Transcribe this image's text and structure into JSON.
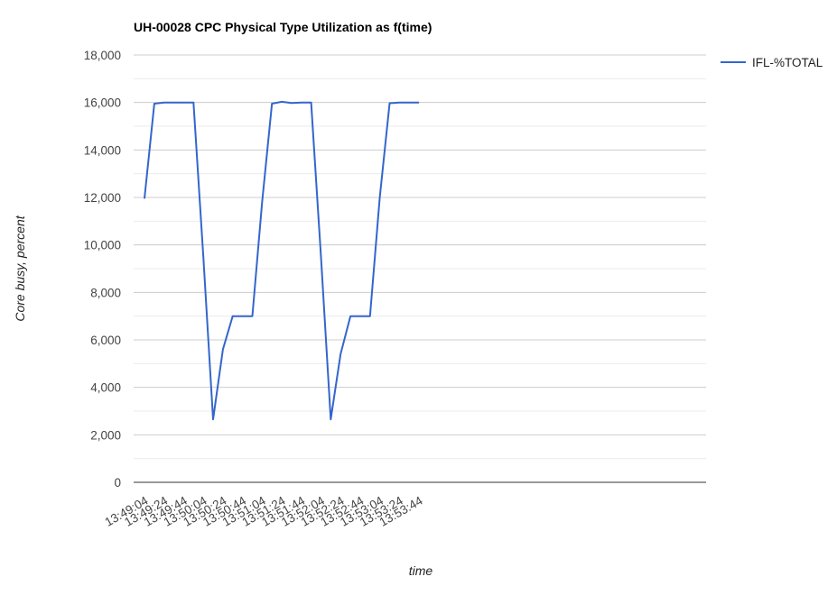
{
  "chart_data": {
    "type": "line",
    "title": "UH-00028 CPC Physical Type Utilization as f(time)",
    "xlabel": "time",
    "ylabel": "Core busy, percent",
    "ylim": [
      0,
      18000
    ],
    "yticks": [
      "0",
      "2,000",
      "4,000",
      "6,000",
      "8,000",
      "10,000",
      "12,000",
      "14,000",
      "16,000",
      "18,000"
    ],
    "xtick_labels": [
      "13:49:04",
      "13:49:24",
      "13:49:44",
      "13:50:04",
      "13:50:24",
      "13:50:44",
      "13:51:04",
      "13:51:24",
      "13:51:44",
      "13:52:04",
      "13:52:24",
      "13:52:44",
      "13:53:04",
      "13:53:24",
      "13:53:44"
    ],
    "x": [
      "13:49:04",
      "13:49:14",
      "13:49:24",
      "13:49:34",
      "13:49:44",
      "13:49:54",
      "13:50:04",
      "13:50:14",
      "13:50:24",
      "13:50:34",
      "13:50:44",
      "13:50:54",
      "13:51:04",
      "13:51:14",
      "13:51:24",
      "13:51:34",
      "13:51:44",
      "13:51:54",
      "13:52:04",
      "13:52:14",
      "13:52:24",
      "13:52:34",
      "13:52:44",
      "13:52:54",
      "13:53:04",
      "13:53:14",
      "13:53:24",
      "13:53:34",
      "13:53:44"
    ],
    "series": [
      {
        "name": "IFL-%TOTAL",
        "color": "#3366cc",
        "values": [
          11950,
          15950,
          16000,
          16000,
          16000,
          16000,
          9500,
          2650,
          5600,
          7000,
          7000,
          7000,
          11800,
          15950,
          16030,
          15980,
          16000,
          16000,
          9500,
          2650,
          5400,
          7000,
          7000,
          7000,
          12000,
          15970,
          16000,
          16000,
          16000
        ]
      }
    ],
    "grid": true,
    "legend_position": "right"
  }
}
